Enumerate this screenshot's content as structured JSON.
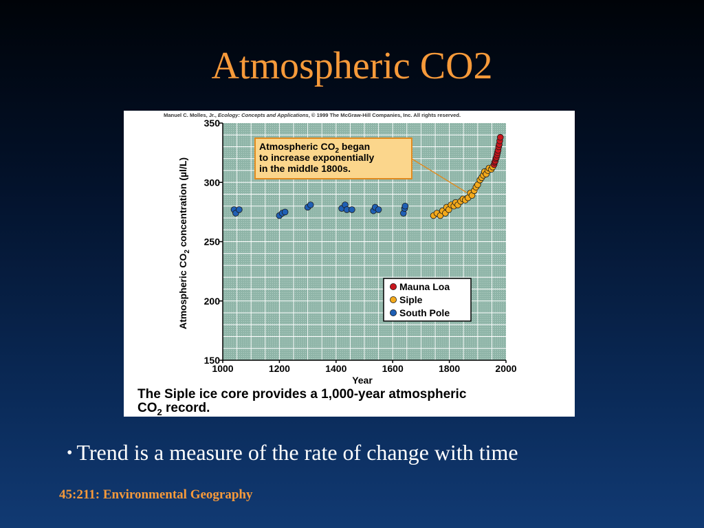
{
  "slide": {
    "title": "Atmospheric CO2",
    "bullet": "Trend is a measure of the rate of change with time",
    "footer": "45:211: Environmental Geography"
  },
  "colors": {
    "background": "#0a2a58",
    "title": "#f79a3a",
    "plot_area": "#8fb5a8",
    "mauna_loa": "#c8161d",
    "siple": "#f3a91b",
    "south_pole": "#1f5fb4",
    "callout_fill": "#fbd68c",
    "callout_border": "#e08a1e"
  },
  "chart_data": {
    "type": "scatter",
    "credit": {
      "prefix": "Manuel C. Molles, Jr., ",
      "book": "Ecology: Concepts and Applications",
      "suffix": ", © 1999 The McGraw-Hill Companies, Inc. All rights reserved."
    },
    "ylabel": {
      "pre": "Atmospheric CO",
      "sub": "2",
      "post": " concentration (µl/L)"
    },
    "xlabel": "Year",
    "xlim": [
      1000,
      2000
    ],
    "ylim": [
      150,
      350
    ],
    "xticks": [
      1000,
      1200,
      1400,
      1600,
      1800,
      2000
    ],
    "yticks": [
      150,
      200,
      250,
      300,
      350
    ],
    "grid": true,
    "legend_position": "right",
    "callout": {
      "line1": {
        "pre": "Atmospheric CO",
        "sub": "2",
        "post": " began"
      },
      "line2": "to increase exponentially",
      "line3": "in the middle 1800s.",
      "points_to": [
        1880,
        295
      ]
    },
    "caption": {
      "line1": "The Siple ice core provides a 1,000-year atmospheric",
      "line2": {
        "pre": "CO",
        "sub": "2",
        "post": " record."
      }
    },
    "series": [
      {
        "name": "Mauna Loa",
        "color": "#c8161d",
        "points": [
          [
            1958,
            315
          ],
          [
            1960,
            317
          ],
          [
            1962,
            318
          ],
          [
            1964,
            320
          ],
          [
            1966,
            321
          ],
          [
            1968,
            323
          ],
          [
            1970,
            325
          ],
          [
            1972,
            327
          ],
          [
            1974,
            330
          ],
          [
            1976,
            332
          ],
          [
            1978,
            335
          ],
          [
            1980,
            338
          ]
        ]
      },
      {
        "name": "Siple",
        "color": "#f3a91b",
        "points": [
          [
            1744,
            272
          ],
          [
            1756,
            274
          ],
          [
            1768,
            272
          ],
          [
            1776,
            276
          ],
          [
            1786,
            274
          ],
          [
            1790,
            279
          ],
          [
            1798,
            277
          ],
          [
            1806,
            281
          ],
          [
            1816,
            280
          ],
          [
            1822,
            283
          ],
          [
            1830,
            281
          ],
          [
            1840,
            284
          ],
          [
            1848,
            286
          ],
          [
            1856,
            285
          ],
          [
            1866,
            287
          ],
          [
            1874,
            291
          ],
          [
            1880,
            289
          ],
          [
            1888,
            293
          ],
          [
            1894,
            296
          ],
          [
            1900,
            298
          ],
          [
            1908,
            302
          ],
          [
            1914,
            304
          ],
          [
            1920,
            306
          ],
          [
            1924,
            309
          ],
          [
            1930,
            307
          ],
          [
            1936,
            310
          ],
          [
            1940,
            312
          ],
          [
            1948,
            311
          ],
          [
            1953,
            313
          ]
        ]
      },
      {
        "name": "South Pole",
        "color": "#1f5fb4",
        "points": [
          [
            1040,
            277
          ],
          [
            1046,
            274
          ],
          [
            1058,
            277
          ],
          [
            1200,
            272
          ],
          [
            1210,
            274
          ],
          [
            1220,
            275
          ],
          [
            1300,
            279
          ],
          [
            1310,
            281
          ],
          [
            1420,
            278
          ],
          [
            1432,
            281
          ],
          [
            1438,
            277
          ],
          [
            1456,
            277
          ],
          [
            1532,
            276
          ],
          [
            1538,
            279
          ],
          [
            1550,
            277
          ],
          [
            1638,
            274
          ],
          [
            1642,
            278
          ],
          [
            1644,
            280
          ]
        ]
      }
    ]
  }
}
